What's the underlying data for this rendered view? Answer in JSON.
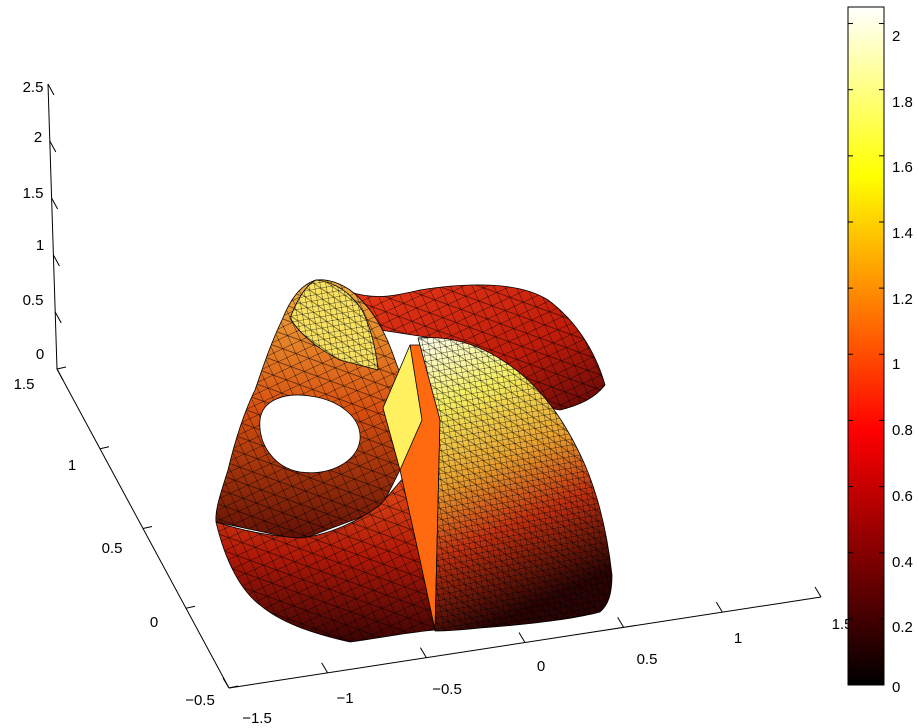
{
  "chart_data": {
    "type": "surface",
    "colormap": "hot",
    "z_ticks": [
      "0",
      "0.5",
      "1",
      "1.5",
      "2",
      "2.5"
    ],
    "y_ticks": [
      "−0.5",
      "0",
      "0.5",
      "1",
      "1.5"
    ],
    "x_ticks": [
      "−1.5",
      "−1",
      "−0.5",
      "0",
      "0.5",
      "1",
      "1.5"
    ],
    "zlim": [
      0,
      2.5
    ],
    "ylim": [
      -0.5,
      1.5
    ],
    "xlim": [
      -1.5,
      1.5
    ],
    "colorbar": {
      "ticks": [
        "0",
        "0.2",
        "0.4",
        "0.6",
        "0.8",
        "1",
        "1.2",
        "1.4",
        "1.6",
        "1.8",
        "2"
      ],
      "range": [
        0,
        2.05
      ]
    },
    "grid": false
  }
}
